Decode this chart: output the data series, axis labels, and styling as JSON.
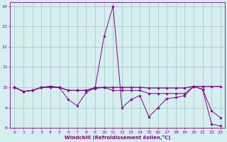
{
  "xlabel": "Windchill (Refroidissement éolien,°C)",
  "background_color": "#d5eef0",
  "line_color": "#880088",
  "grid_color": "#aacccc",
  "xlim": [
    -0.5,
    23.5
  ],
  "ylim": [
    8,
    14.2
  ],
  "yticks": [
    8,
    9,
    10,
    11,
    12,
    13,
    14
  ],
  "xticks": [
    0,
    1,
    2,
    3,
    4,
    5,
    6,
    7,
    8,
    9,
    10,
    11,
    12,
    13,
    14,
    15,
    16,
    17,
    18,
    19,
    20,
    21,
    22,
    23
  ],
  "series1_x": [
    0,
    1,
    2,
    3,
    4,
    5,
    6,
    7,
    8,
    9,
    10,
    11,
    12,
    13,
    14,
    15,
    16,
    17,
    18,
    19,
    20,
    21,
    22,
    23
  ],
  "series1_y": [
    10.0,
    9.8,
    9.85,
    10.0,
    10.05,
    10.0,
    9.4,
    9.1,
    9.75,
    10.0,
    12.5,
    14.0,
    9.0,
    9.4,
    9.6,
    8.55,
    9.0,
    9.45,
    9.5,
    9.6,
    10.05,
    9.9,
    8.2,
    8.1
  ],
  "series2_x": [
    0,
    1,
    2,
    3,
    4,
    5,
    6,
    7,
    8,
    9,
    10,
    11,
    12,
    13,
    14,
    15,
    16,
    17,
    18,
    19,
    20,
    21,
    22,
    23
  ],
  "series2_y": [
    10.0,
    9.8,
    9.85,
    10.0,
    10.0,
    10.0,
    9.85,
    9.85,
    9.85,
    9.95,
    10.0,
    10.0,
    10.0,
    10.0,
    10.0,
    9.97,
    9.97,
    9.97,
    9.97,
    9.97,
    10.05,
    10.05,
    10.05,
    10.05
  ],
  "series3_x": [
    0,
    1,
    2,
    3,
    4,
    5,
    6,
    7,
    8,
    9,
    10,
    11,
    12,
    13,
    14,
    15,
    16,
    17,
    18,
    19,
    20,
    21,
    22,
    23
  ],
  "series3_y": [
    10.0,
    9.8,
    9.85,
    10.0,
    10.05,
    10.0,
    9.85,
    9.85,
    9.85,
    10.0,
    10.0,
    9.85,
    9.85,
    9.85,
    9.85,
    9.7,
    9.7,
    9.7,
    9.7,
    9.7,
    10.05,
    9.9,
    8.85,
    8.5
  ]
}
